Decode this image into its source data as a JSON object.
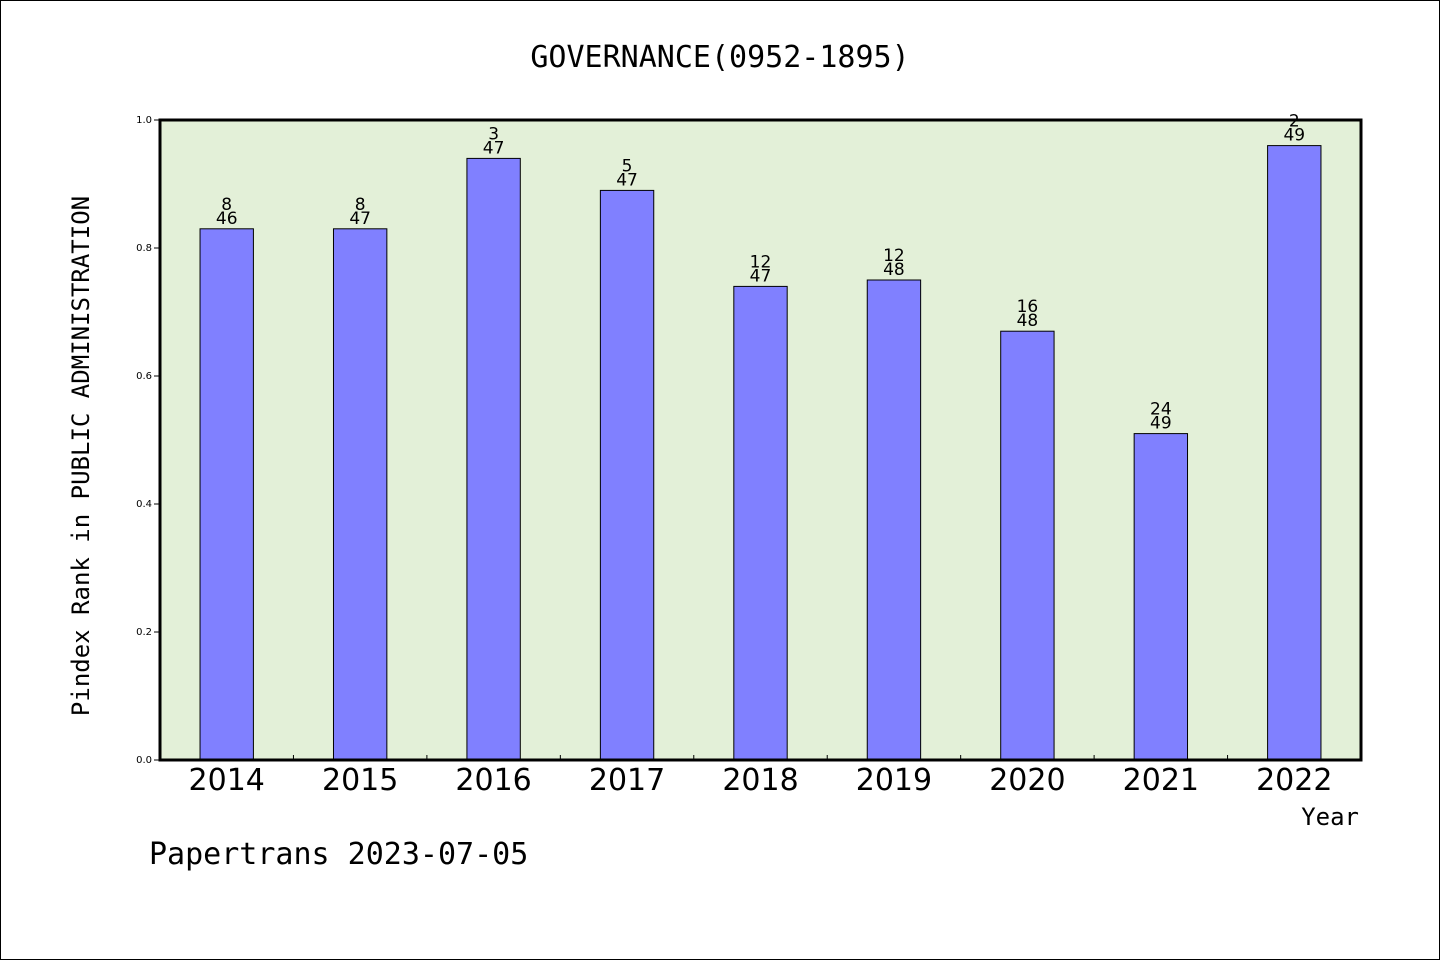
{
  "chart_data": {
    "type": "bar",
    "title": "GOVERNANCE(0952-1895)",
    "xlabel": "Year",
    "ylabel": "Pindex Rank in PUBLIC ADMINISTRATION",
    "ylim": [
      0,
      1.0
    ],
    "yticks": [
      "0.0",
      "0.2",
      "0.4",
      "0.6",
      "0.8",
      "1.0"
    ],
    "categories": [
      "2014",
      "2015",
      "2016",
      "2017",
      "2018",
      "2019",
      "2020",
      "2021",
      "2022"
    ],
    "values": [
      0.83,
      0.83,
      0.94,
      0.89,
      0.74,
      0.75,
      0.67,
      0.51,
      0.96
    ],
    "rank": [
      "8",
      "8",
      "3",
      "5",
      "12",
      "12",
      "16",
      "24",
      "2"
    ],
    "total": [
      "46",
      "47",
      "47",
      "47",
      "47",
      "48",
      "48",
      "49",
      "49"
    ],
    "grid": false,
    "plot_background": "#e3f0d8",
    "bar_color": "#8080ff"
  },
  "footer": "Papertrans 2023-07-05"
}
